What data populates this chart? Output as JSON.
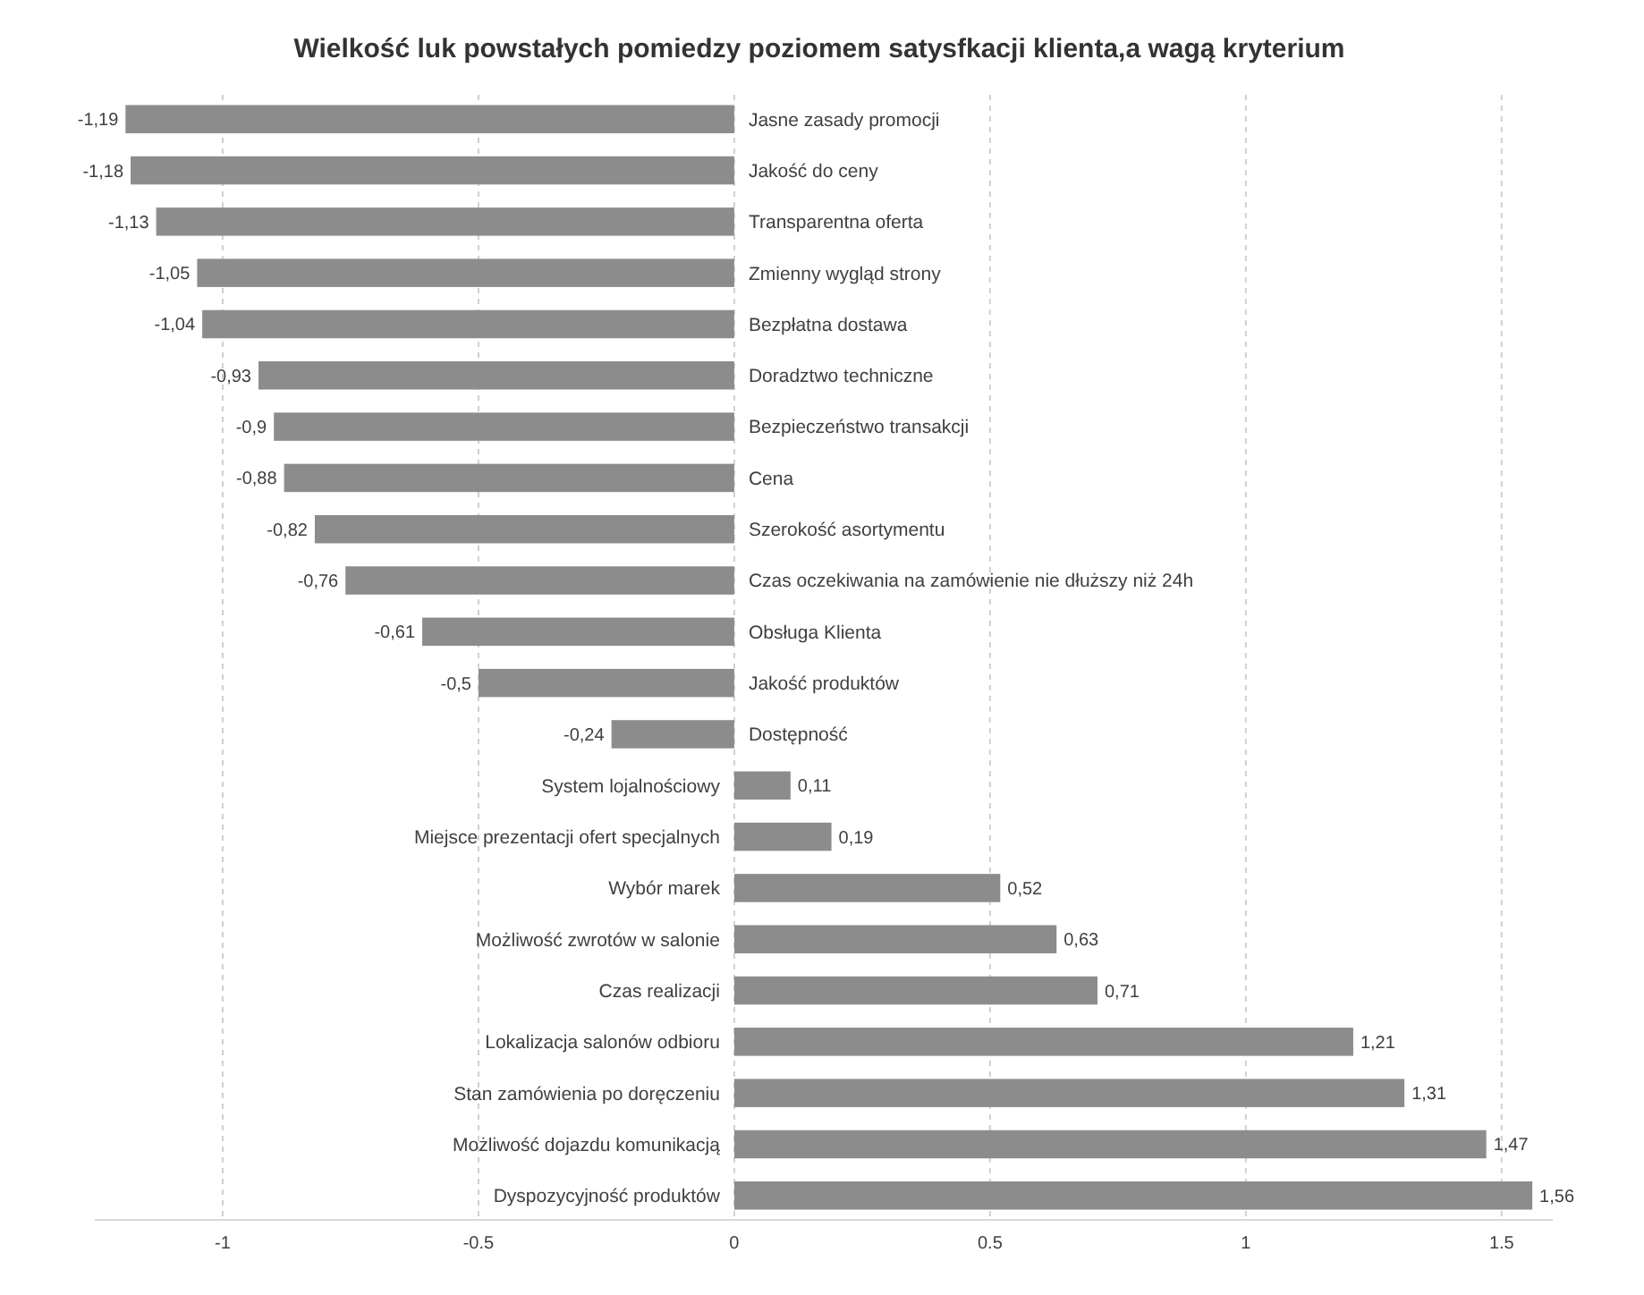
{
  "chart_data": {
    "type": "bar",
    "orientation": "horizontal",
    "title": "Wielkość luk powstałych pomiedzy poziomem satysfkacji klienta,a wagą kryterium",
    "categories": [
      "Jasne zasady promocji",
      "Jakość do ceny",
      "Transparentna oferta",
      "Zmienny wygląd strony",
      "Bezpłatna dostawa",
      "Doradztwo techniczne",
      "Bezpieczeństwo transakcji",
      "Cena",
      "Szerokość asortymentu",
      "Czas oczekiwania na zamówienie nie dłuższy niż 24h",
      "Obsługa Klienta",
      "Jakość produktów",
      "Dostępność",
      "System lojalnościowy",
      "Miejsce prezentacji ofert specjalnych",
      "Wybór marek",
      "Możliwość zwrotów w salonie",
      "Czas realizacji",
      "Lokalizacja salonów odbioru",
      "Stan zamówienia po doręczeniu",
      "Możliwość dojazdu komunikacją",
      "Dyspozycyjność produktów"
    ],
    "values": [
      -1.19,
      -1.18,
      -1.13,
      -1.05,
      -1.04,
      -0.93,
      -0.9,
      -0.88,
      -0.82,
      -0.76,
      -0.61,
      -0.5,
      -0.24,
      0.11,
      0.19,
      0.52,
      0.63,
      0.71,
      1.21,
      1.31,
      1.47,
      1.56
    ],
    "value_labels": [
      "-1,19",
      "-1,18",
      "-1,13",
      "-1,05",
      "-1,04",
      "-0,93",
      "-0,9",
      "-0,88",
      "-0,82",
      "-0,76",
      "-0,61",
      "-0,5",
      "-0,24",
      "0,11",
      "0,19",
      "0,52",
      "0,63",
      "0,71",
      "1,21",
      "1,31",
      "1,47",
      "1,56"
    ],
    "color": "#8c8c8c",
    "xlim": [
      -1.25,
      1.6
    ],
    "xticks": [
      -1,
      -0.5,
      0,
      0.5,
      1,
      1.5
    ],
    "grid": "x"
  }
}
